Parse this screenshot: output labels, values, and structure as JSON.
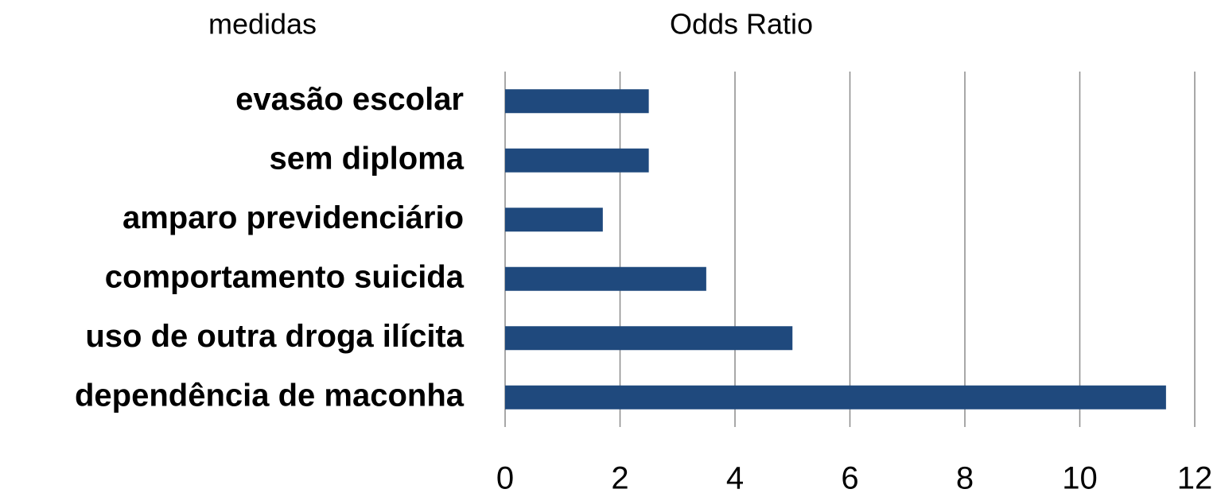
{
  "chart_data": {
    "type": "bar",
    "orientation": "horizontal",
    "title": "Odds Ratio",
    "ylabel": "medidas",
    "categories": [
      "evasão escolar",
      "sem diploma",
      "amparo previdenciário",
      "comportamento suicida",
      "uso de outra droga ilícita",
      "dependência de maconha"
    ],
    "values": [
      2.5,
      2.5,
      1.7,
      3.5,
      5.0,
      11.5
    ],
    "color": "#1f497d",
    "xlim": [
      0,
      12
    ],
    "xticks": [
      0,
      2,
      4,
      6,
      8,
      10,
      12
    ],
    "grid": true
  }
}
